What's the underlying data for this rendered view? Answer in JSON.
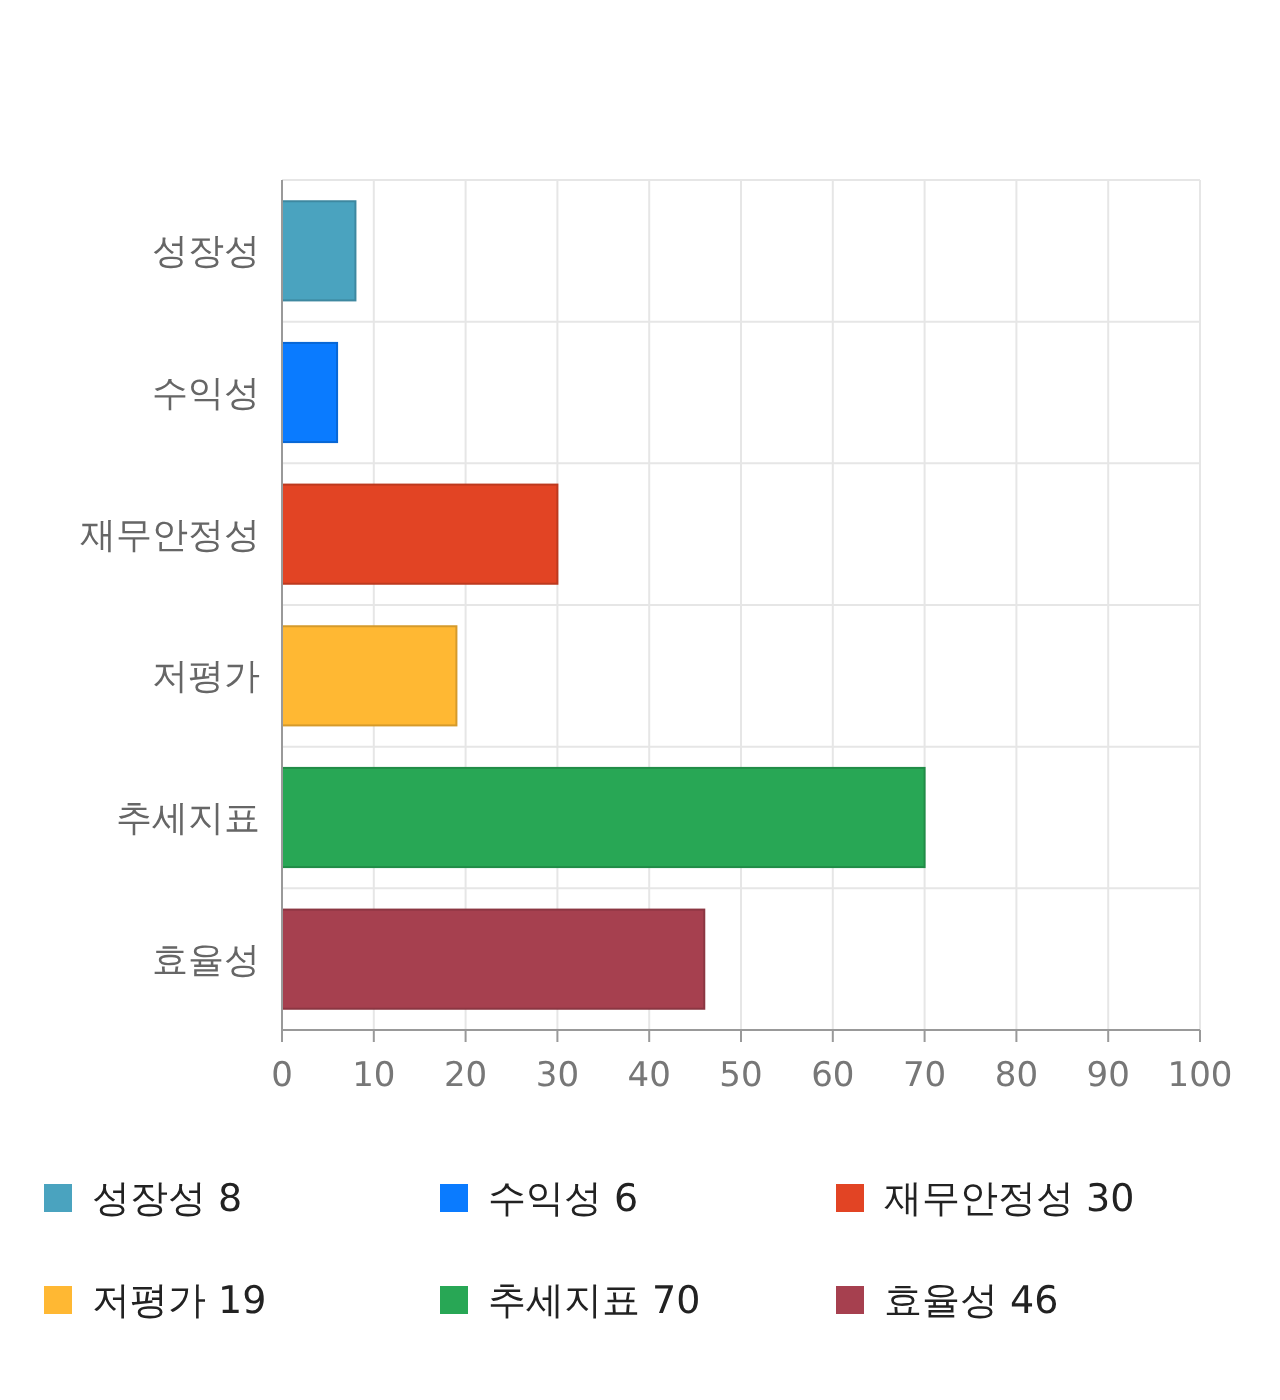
{
  "chart_data": {
    "type": "bar",
    "orientation": "horizontal",
    "categories": [
      "성장성",
      "수익성",
      "재무안정성",
      "저평가",
      "추세지표",
      "효율성"
    ],
    "series": [
      {
        "name": "성장성 8",
        "color": "#4aa3bf",
        "values": [
          8,
          null,
          null,
          null,
          null,
          null
        ]
      },
      {
        "name": "수익성 6",
        "color": "#0a7bff",
        "values": [
          null,
          6,
          null,
          null,
          null,
          null
        ]
      },
      {
        "name": "재무안정성 30",
        "color": "#e24424",
        "values": [
          null,
          null,
          30,
          null,
          null,
          null
        ]
      },
      {
        "name": "저평가 19",
        "color": "#ffb833",
        "values": [
          null,
          null,
          null,
          19,
          null,
          null
        ]
      },
      {
        "name": "추세지표 70",
        "color": "#28a755",
        "values": [
          null,
          null,
          null,
          null,
          70,
          null
        ]
      },
      {
        "name": "효율성 46",
        "color": "#a6404f",
        "values": [
          null,
          null,
          null,
          null,
          null,
          46
        ]
      }
    ],
    "xlim": [
      0,
      100
    ],
    "xticks": [
      0,
      10,
      20,
      30,
      40,
      50,
      60,
      70,
      80,
      90,
      100
    ],
    "grid": true,
    "legend": "bottom"
  }
}
